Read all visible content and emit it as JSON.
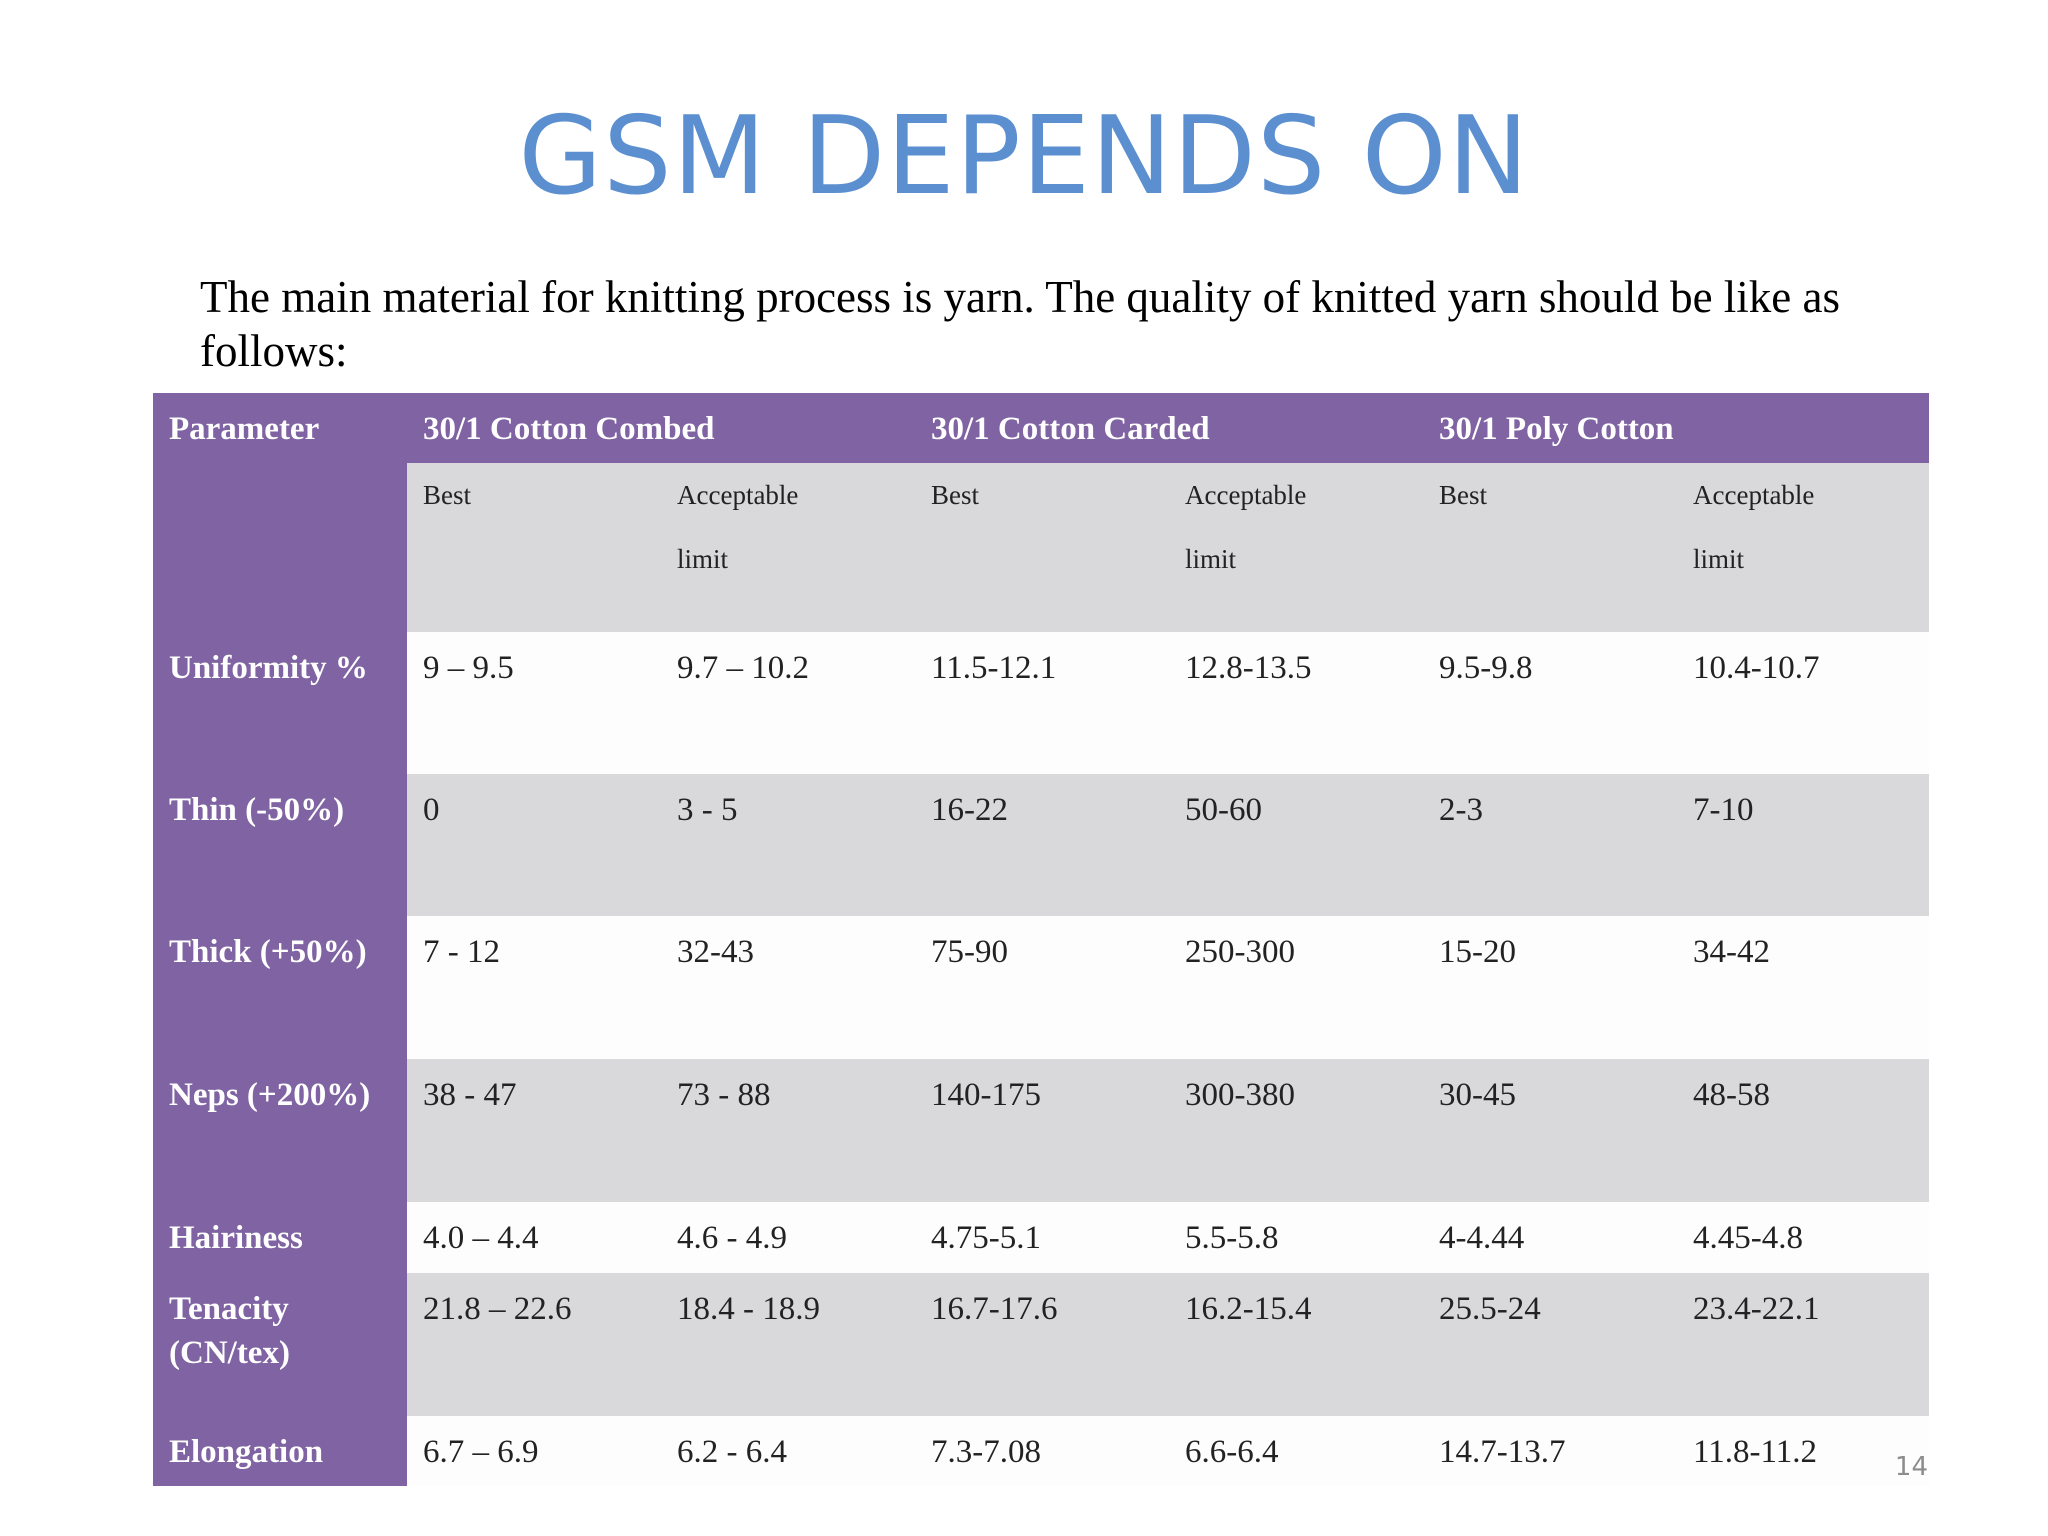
{
  "title": "GSM DEPENDS ON",
  "intro": "The main material for knitting process is yarn. The quality of knitted yarn should be like as follows:",
  "table": {
    "parameter_header": "Parameter",
    "groups": [
      "30/1 Cotton Combed",
      "30/1 Cotton Carded",
      "30/1 Poly Cotton"
    ],
    "subheaders": [
      {
        "best": "Best",
        "acceptable_line1": "Acceptable",
        "acceptable_line2": "limit"
      },
      {
        "best": "Best",
        "acceptable_line1": "Acceptable",
        "acceptable_line2": "limit"
      },
      {
        "best": "Best",
        "acceptable_line1": "Acceptable",
        "acceptable_line2": "limit"
      }
    ],
    "rows": [
      {
        "label": "Uniformity %",
        "values": [
          "9 – 9.5",
          "9.7 – 10.2",
          "11.5-12.1",
          "12.8-13.5",
          "9.5-9.8",
          "10.4-10.7"
        ]
      },
      {
        "label": "Thin (-50%)",
        "values": [
          "0",
          "3 - 5",
          "16-22",
          "50-60",
          "2-3",
          "7-10"
        ]
      },
      {
        "label": "Thick (+50%)",
        "values": [
          "7 - 12",
          "32-43",
          "75-90",
          "250-300",
          "15-20",
          "34-42"
        ]
      },
      {
        "label": "Neps (+200%)",
        "values": [
          "38 - 47",
          "73 - 88",
          "140-175",
          "300-380",
          "30-45",
          "48-58"
        ]
      },
      {
        "label": "Hairiness",
        "values": [
          "4.0 – 4.4",
          "4.6 - 4.9",
          "4.75-5.1",
          "5.5-5.8",
          "4-4.44",
          "4.45-4.8"
        ]
      },
      {
        "label": "Tenacity (CN/tex)",
        "values": [
          "21.8 – 22.6",
          "18.4 - 18.9",
          "16.7-17.6",
          "16.2-15.4",
          "25.5-24",
          "23.4-22.1"
        ]
      },
      {
        "label": "Elongation",
        "values": [
          "6.7 – 6.9",
          "6.2 - 6.4",
          "7.3-7.08",
          "6.6-6.4",
          "14.7-13.7",
          "11.8-11.2"
        ]
      }
    ]
  },
  "page_number": "14",
  "colors": {
    "title": "#5b8fd0",
    "header_purple": "#7f63a2",
    "row_grey": "#d9d9dc",
    "row_white": "#fdfdfd"
  }
}
